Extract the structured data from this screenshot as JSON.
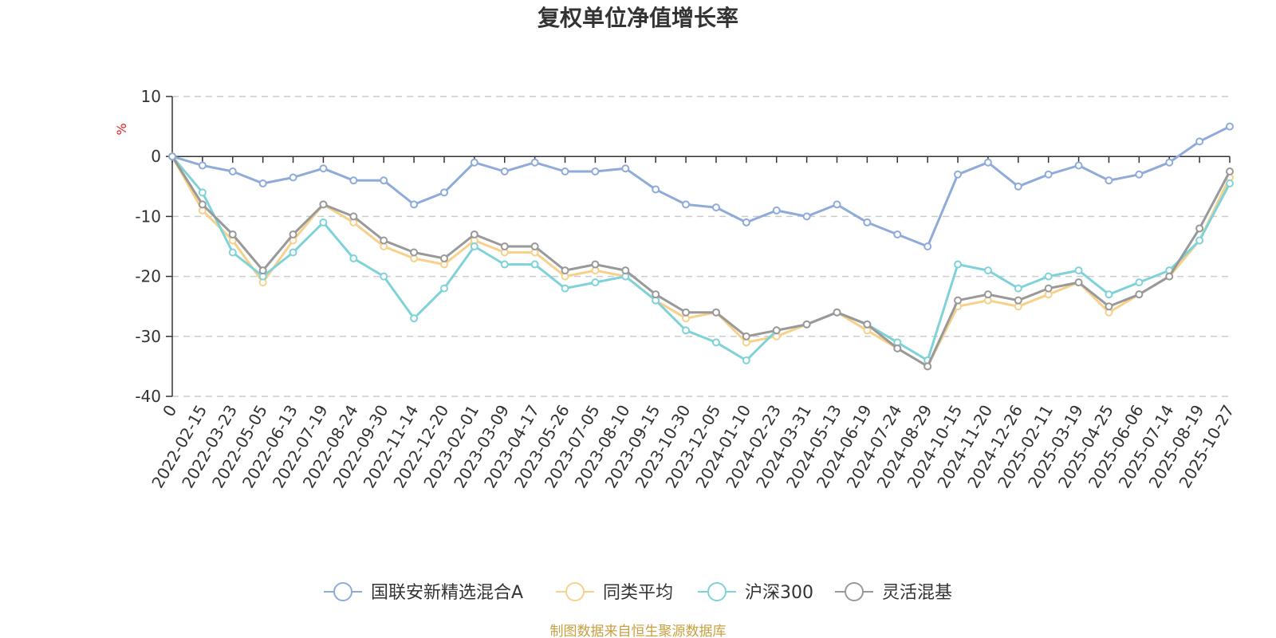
{
  "chart_data": {
    "type": "line",
    "title": "复权单位净值增长率",
    "ylabel": "%",
    "ylim": [
      -40,
      10
    ],
    "yticks": [
      10,
      0,
      -10,
      -20,
      -30,
      -40
    ],
    "grid": true,
    "source": "制图数据来自恒生聚源数据库",
    "categories": [
      "0",
      "2022-02-15",
      "2022-03-23",
      "2022-05-05",
      "2022-06-13",
      "2022-07-19",
      "2022-08-24",
      "2022-09-30",
      "2022-11-14",
      "2022-12-20",
      "2023-02-01",
      "2023-03-09",
      "2023-04-17",
      "2023-05-26",
      "2023-07-05",
      "2023-08-10",
      "2023-09-15",
      "2023-10-30",
      "2023-12-05",
      "2024-01-10",
      "2024-02-23",
      "2024-03-31",
      "2024-05-13",
      "2024-06-19",
      "2024-07-24",
      "2024-08-29",
      "2024-10-15",
      "2024-11-20",
      "2024-12-26",
      "2025-02-11",
      "2025-03-19",
      "2025-04-25",
      "2025-06-06",
      "2025-07-14",
      "2025-08-19",
      "2025-10-27"
    ],
    "series": [
      {
        "name": "国联安新精选混合A",
        "color": "#8fabd9",
        "values": [
          0,
          -1.5,
          -2.5,
          -4.5,
          -3.5,
          -2,
          -4,
          -4,
          -8,
          -6,
          -1,
          -2.5,
          -1,
          -2.5,
          -2.5,
          -2,
          -5.5,
          -8,
          -8.5,
          -11,
          -9,
          -10,
          -8,
          -11,
          -13,
          -15,
          -3,
          -1,
          -5,
          -3,
          -1.5,
          -4,
          -3,
          -1,
          2.5,
          5
        ]
      },
      {
        "name": "同类平均",
        "color": "#f7d08a",
        "values": [
          0,
          -9,
          -14,
          -21,
          -14,
          -8,
          -11,
          -15,
          -17,
          -18,
          -14,
          -16,
          -16,
          -20,
          -19,
          -20,
          -24,
          -27,
          -26,
          -31,
          -30,
          -28,
          -26,
          -29,
          -32,
          -35,
          -25,
          -24,
          -25,
          -23,
          -21,
          -26,
          -23,
          -20,
          -14,
          -3.5
        ]
      },
      {
        "name": "沪深300",
        "color": "#7fd3d8",
        "values": [
          0,
          -6,
          -16,
          -20,
          -16,
          -11,
          -17,
          -20,
          -27,
          -22,
          -15,
          -18,
          -18,
          -22,
          -21,
          -20,
          -24,
          -29,
          -31,
          -34,
          -29,
          -28,
          -26,
          -28,
          -31,
          -34,
          -18,
          -19,
          -22,
          -20,
          -19,
          -23,
          -21,
          -19,
          -14,
          -4.5
        ]
      },
      {
        "name": "灵活混基",
        "color": "#999999",
        "values": [
          0,
          -8,
          -13,
          -19,
          -13,
          -8,
          -10,
          -14,
          -16,
          -17,
          -13,
          -15,
          -15,
          -19,
          -18,
          -19,
          -23,
          -26,
          -26,
          -30,
          -29,
          -28,
          -26,
          -28,
          -32,
          -35,
          -24,
          -23,
          -24,
          -22,
          -21,
          -25,
          -23,
          -20,
          -12,
          -2.5
        ]
      }
    ]
  }
}
